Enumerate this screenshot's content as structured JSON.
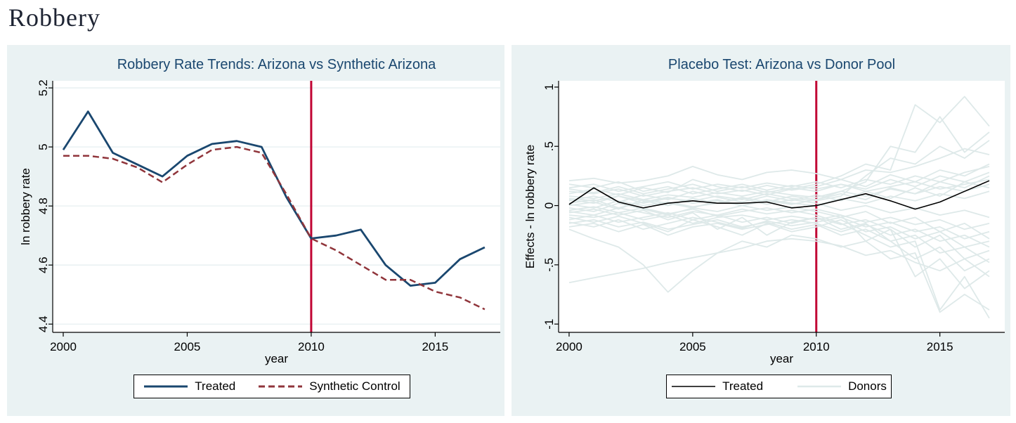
{
  "page": {
    "title": "Robbery"
  },
  "colors": {
    "accent_navy": "#1a476f",
    "accent_maroon": "#90353b",
    "treatment_line_red": "#c10534",
    "donor_pale": "#dee9e9",
    "treated_black": "#000000",
    "panel_background": "#eaf2f3",
    "gridline": "#e6eff1"
  },
  "chart_data": [
    {
      "type": "line",
      "title": "Robbery Rate Trends: Arizona vs Synthetic Arizona",
      "xlabel": "year",
      "ylabel": "ln robbery rate",
      "x": [
        2000,
        2001,
        2002,
        2003,
        2004,
        2005,
        2006,
        2007,
        2008,
        2009,
        2010,
        2011,
        2012,
        2013,
        2014,
        2015,
        2016,
        2017
      ],
      "series": [
        {
          "name": "Treated",
          "style": "solid",
          "color": "#1a476f",
          "values": [
            4.99,
            5.12,
            4.98,
            4.94,
            4.9,
            4.97,
            5.01,
            5.02,
            5.0,
            4.83,
            4.69,
            4.7,
            4.72,
            4.6,
            4.53,
            4.54,
            4.62,
            4.66
          ]
        },
        {
          "name": "Synthetic Control",
          "style": "dashed",
          "color": "#90353b",
          "values": [
            4.97,
            4.97,
            4.96,
            4.93,
            4.88,
            4.94,
            4.99,
            5.0,
            4.98,
            4.84,
            4.69,
            4.65,
            4.6,
            4.55,
            4.55,
            4.51,
            4.49,
            4.45
          ]
        }
      ],
      "vline": {
        "x": 2010,
        "color": "#c10534"
      },
      "grid": true,
      "grid_color": "#e6eff1",
      "yticks": [
        5.2,
        5.0,
        4.8,
        4.6,
        4.4
      ],
      "ytick_labels": [
        "5.2",
        "5",
        "4.8",
        "4.6",
        "4.4"
      ],
      "xticks": [
        2000,
        2005,
        2010,
        2015
      ],
      "xtick_labels": [
        "2000",
        "2005",
        "2010",
        "2015"
      ],
      "ylim": [
        4.372,
        5.224
      ],
      "xlim": [
        1999.575,
        2017.625
      ],
      "legend_position": "bottom"
    },
    {
      "type": "line",
      "title": "Placebo Test: Arizona vs Donor Pool",
      "xlabel": "year",
      "ylabel": "Effects - ln robbery rate",
      "x": [
        2000,
        2001,
        2002,
        2003,
        2004,
        2005,
        2006,
        2007,
        2008,
        2009,
        2010,
        2011,
        2012,
        2013,
        2014,
        2015,
        2016,
        2017
      ],
      "series": [
        {
          "name": "Treated",
          "style": "solid",
          "color": "#000000",
          "values": [
            0.01,
            0.15,
            0.03,
            -0.02,
            0.02,
            0.04,
            0.02,
            0.02,
            0.03,
            -0.02,
            0.0,
            0.05,
            0.1,
            0.04,
            -0.03,
            0.03,
            0.12,
            0.21
          ]
        }
      ],
      "donors": {
        "name": "Donors",
        "color": "#dee9e9",
        "series": [
          [
            0.21,
            0.23,
            0.19,
            0.21,
            0.25,
            0.33,
            0.26,
            0.22,
            0.28,
            0.3,
            0.27,
            0.22,
            0.3,
            0.28,
            0.33,
            0.4,
            0.48,
            0.43
          ],
          [
            0.12,
            0.1,
            0.14,
            0.08,
            0.12,
            0.15,
            0.1,
            0.13,
            0.09,
            0.14,
            0.18,
            0.25,
            0.35,
            0.3,
            0.85,
            0.7,
            0.92,
            0.67
          ],
          [
            0.05,
            0.02,
            0.08,
            0.04,
            0.0,
            0.06,
            0.02,
            0.07,
            0.03,
            0.08,
            0.05,
            0.12,
            0.2,
            0.5,
            0.45,
            0.75,
            0.45,
            0.62
          ],
          [
            -0.65,
            -0.61,
            -0.57,
            -0.53,
            -0.48,
            -0.44,
            -0.4,
            -0.36,
            -0.3,
            -0.28,
            -0.3,
            -0.34,
            -0.42,
            -0.38,
            -0.48,
            -0.55,
            -0.45,
            -0.6
          ],
          [
            -0.05,
            -0.08,
            -0.02,
            -0.06,
            -0.1,
            -0.05,
            -0.08,
            -0.03,
            -0.07,
            -0.04,
            -0.08,
            -0.15,
            -0.25,
            -0.35,
            -0.3,
            -0.88,
            -0.6,
            -0.95
          ],
          [
            -0.2,
            -0.28,
            -0.35,
            -0.5,
            -0.73,
            -0.55,
            -0.4,
            -0.3,
            -0.35,
            -0.25,
            -0.28,
            -0.35,
            -0.3,
            -0.45,
            -0.4,
            -0.9,
            -0.75,
            -0.88
          ],
          [
            0.15,
            0.18,
            0.12,
            0.16,
            0.2,
            0.14,
            0.18,
            0.15,
            0.19,
            0.16,
            0.2,
            0.15,
            0.22,
            0.18,
            0.25,
            0.2,
            0.28,
            0.33
          ],
          [
            -0.12,
            -0.08,
            -0.14,
            -0.1,
            -0.06,
            -0.12,
            -0.08,
            -0.14,
            -0.1,
            -0.15,
            -0.1,
            -0.2,
            -0.15,
            -0.3,
            -0.25,
            -0.4,
            -0.35,
            -0.48
          ],
          [
            0.02,
            0.05,
            -0.02,
            0.03,
            0.07,
            0.02,
            0.05,
            0.0,
            0.04,
            0.01,
            0.05,
            0.1,
            0.05,
            0.15,
            0.1,
            0.2,
            0.15,
            0.25
          ],
          [
            -0.02,
            -0.05,
            0.02,
            -0.03,
            -0.08,
            -0.02,
            -0.05,
            0.0,
            -0.04,
            -0.01,
            -0.05,
            -0.1,
            -0.05,
            -0.15,
            -0.1,
            -0.22,
            -0.15,
            -0.28
          ],
          [
            0.08,
            0.06,
            0.1,
            0.05,
            0.09,
            0.07,
            0.11,
            0.08,
            0.12,
            0.09,
            0.07,
            0.12,
            0.08,
            0.14,
            0.1,
            0.16,
            0.12,
            0.18
          ],
          [
            -0.08,
            -0.1,
            -0.06,
            -0.12,
            -0.08,
            -0.15,
            -0.1,
            -0.08,
            -0.12,
            -0.09,
            -0.12,
            -0.08,
            -0.14,
            -0.1,
            -0.16,
            -0.12,
            -0.2,
            -0.15
          ],
          [
            0.18,
            0.15,
            0.2,
            0.12,
            0.16,
            0.1,
            0.14,
            0.18,
            0.13,
            0.17,
            0.14,
            0.18,
            0.12,
            0.16,
            0.2,
            0.14,
            0.18,
            0.22
          ],
          [
            -0.15,
            -0.12,
            -0.18,
            -0.14,
            -0.2,
            -0.16,
            -0.12,
            -0.18,
            -0.14,
            -0.2,
            -0.16,
            -0.25,
            -0.2,
            -0.3,
            -0.45,
            -0.35,
            -0.55,
            -0.45
          ],
          [
            0.0,
            0.03,
            -0.03,
            0.05,
            0.02,
            -0.02,
            0.04,
            0.0,
            0.05,
            0.02,
            0.0,
            0.06,
            0.02,
            0.08,
            0.04,
            0.1,
            0.06,
            0.12
          ],
          [
            -0.1,
            -0.14,
            -0.09,
            -0.15,
            -0.22,
            -0.12,
            -0.18,
            -0.25,
            -0.15,
            -0.22,
            -0.18,
            -0.12,
            -0.22,
            -0.18,
            -0.28,
            -0.22,
            -0.35,
            -0.3
          ],
          [
            0.1,
            0.14,
            0.09,
            0.15,
            0.11,
            0.22,
            0.16,
            0.12,
            0.17,
            0.13,
            0.16,
            0.22,
            0.16,
            0.26,
            0.2,
            0.3,
            0.25,
            0.35
          ],
          [
            -0.04,
            -0.01,
            -0.06,
            -0.02,
            -0.07,
            -0.03,
            -0.09,
            -0.05,
            -0.02,
            -0.06,
            -0.03,
            -0.08,
            -0.3,
            -0.2,
            -0.35,
            -0.25,
            -0.45,
            -0.38
          ],
          [
            0.04,
            0.08,
            0.03,
            0.09,
            0.05,
            0.12,
            0.07,
            0.03,
            0.08,
            0.04,
            0.09,
            0.04,
            0.12,
            0.06,
            0.15,
            0.08,
            0.2,
            0.15
          ],
          [
            -0.18,
            -0.15,
            -0.22,
            -0.16,
            -0.25,
            -0.18,
            -0.15,
            -0.2,
            -0.16,
            -0.12,
            -0.15,
            -0.22,
            -0.16,
            -0.25,
            -0.2,
            -0.3,
            -0.25,
            -0.35
          ],
          [
            0.06,
            0.04,
            0.08,
            0.02,
            0.06,
            0.04,
            0.08,
            0.05,
            0.1,
            0.06,
            0.04,
            0.08,
            0.25,
            0.4,
            0.35,
            0.5,
            0.4,
            0.55
          ],
          [
            -0.06,
            -0.03,
            -0.08,
            -0.04,
            -0.12,
            -0.06,
            -0.2,
            -0.1,
            -0.25,
            -0.14,
            -0.1,
            -0.16,
            -0.12,
            -0.2,
            -0.6,
            -0.45,
            -0.7,
            -0.55
          ],
          [
            0.14,
            0.11,
            0.16,
            0.1,
            0.14,
            0.18,
            0.12,
            0.16,
            0.11,
            0.15,
            0.12,
            0.18,
            0.14,
            0.22,
            0.16,
            0.25,
            0.2,
            0.28
          ],
          [
            -0.14,
            -0.18,
            -0.12,
            -0.2,
            -0.15,
            -0.1,
            -0.14,
            -0.19,
            -0.13,
            -0.17,
            -0.14,
            -0.1,
            -0.18,
            -0.14,
            -0.22,
            -0.18,
            -0.28,
            -0.22
          ],
          [
            0.01,
            -0.02,
            0.04,
            0.0,
            0.03,
            -0.01,
            0.02,
            0.06,
            0.01,
            0.05,
            0.02,
            -0.04,
            0.0,
            -0.06,
            -0.02,
            -0.08,
            -0.04,
            -0.1
          ]
        ]
      },
      "vline": {
        "x": 2010,
        "color": "#c10534"
      },
      "grid": false,
      "grid_color": "#e6eff1",
      "yticks": [
        1,
        0.5,
        0,
        -0.5,
        -1
      ],
      "ytick_labels": [
        "1",
        ".5",
        "0",
        "-.5",
        "-1"
      ],
      "xticks": [
        2000,
        2005,
        2010,
        2015
      ],
      "xtick_labels": [
        "2000",
        "2005",
        "2010",
        "2015"
      ],
      "ylim": [
        -1.07,
        1.053
      ],
      "xlim": [
        1999.575,
        2017.625
      ],
      "legend_position": "bottom"
    }
  ]
}
